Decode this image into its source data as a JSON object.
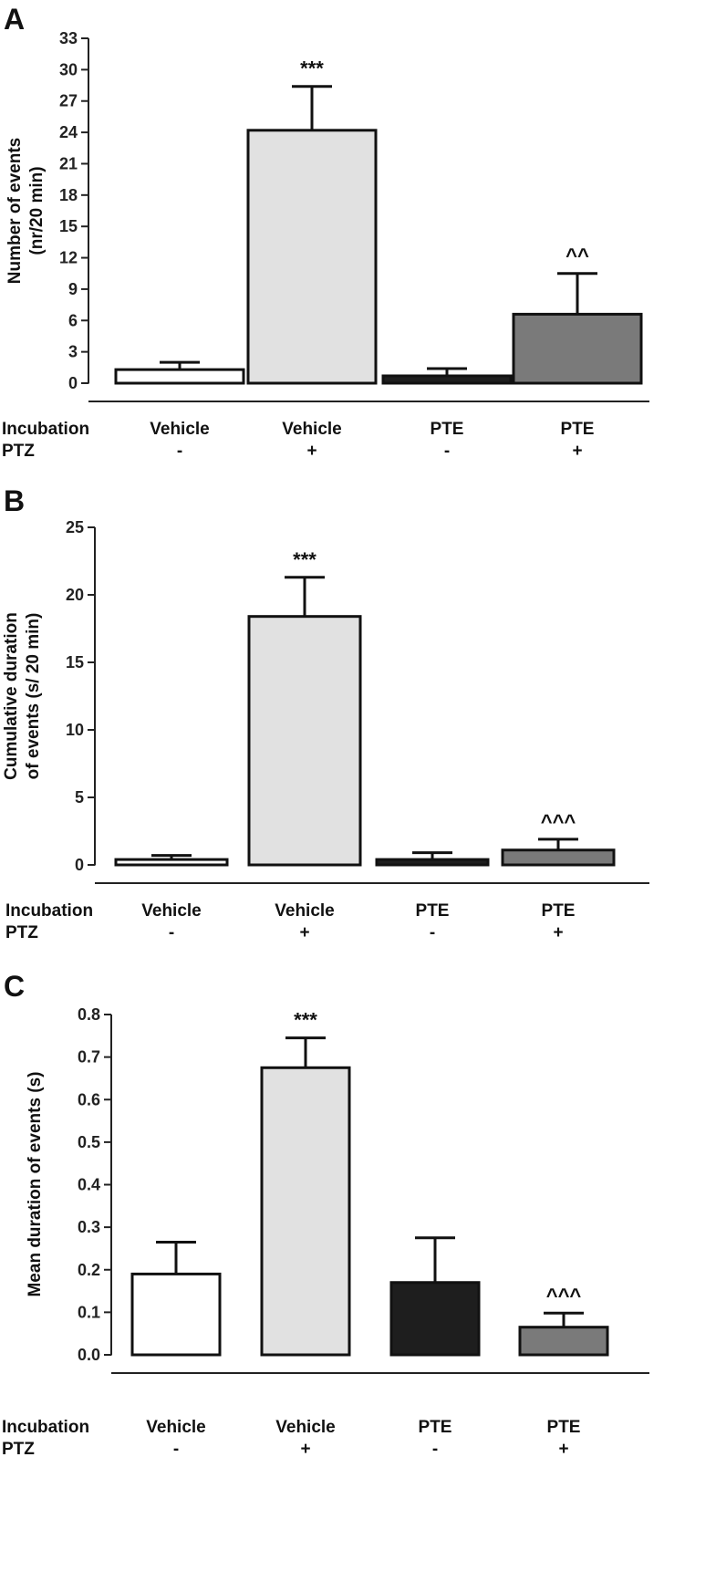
{
  "row_labels": {
    "incubation": "Incubation",
    "ptz": "PTZ"
  },
  "chart_data": [
    {
      "type": "bar",
      "panel": "A",
      "ylabel": [
        "Number of events",
        "(nr/20 min)"
      ],
      "ylim": [
        0,
        33
      ],
      "yticks": [
        0,
        3,
        6,
        9,
        12,
        15,
        18,
        21,
        24,
        27,
        30,
        33
      ],
      "categories": [
        {
          "incubation": "Vehicle",
          "ptz": "-"
        },
        {
          "incubation": "Vehicle",
          "ptz": "+"
        },
        {
          "incubation": "PTE",
          "ptz": "-"
        },
        {
          "incubation": "PTE",
          "ptz": "+"
        }
      ],
      "values": [
        1.3,
        24.2,
        0.7,
        6.6
      ],
      "errors": [
        0.7,
        4.2,
        0.7,
        3.9
      ],
      "annotations": [
        "",
        "***",
        "",
        "^^"
      ],
      "fills": [
        "#ffffff",
        "#e1e1e1",
        "#1e1e1e",
        "#7a7a7a"
      ]
    },
    {
      "type": "bar",
      "panel": "B",
      "ylabel": [
        "Cumulative duration",
        "of events (s/ 20 min)"
      ],
      "ylim": [
        0,
        25
      ],
      "yticks": [
        0,
        5,
        10,
        15,
        20,
        25
      ],
      "categories": [
        {
          "incubation": "Vehicle",
          "ptz": "-"
        },
        {
          "incubation": "Vehicle",
          "ptz": "+"
        },
        {
          "incubation": "PTE",
          "ptz": "-"
        },
        {
          "incubation": "PTE",
          "ptz": "+"
        }
      ],
      "values": [
        0.4,
        18.4,
        0.4,
        1.1
      ],
      "errors": [
        0.3,
        2.9,
        0.5,
        0.8
      ],
      "annotations": [
        "",
        "***",
        "",
        "^^^"
      ],
      "fills": [
        "#ffffff",
        "#e1e1e1",
        "#1e1e1e",
        "#7a7a7a"
      ]
    },
    {
      "type": "bar",
      "panel": "C",
      "ylabel": [
        "Mean duration of events (s)"
      ],
      "ylim": [
        0,
        0.8
      ],
      "yticks": [
        "0.0",
        "0.1",
        "0.2",
        "0.3",
        "0.4",
        "0.5",
        "0.6",
        "0.7",
        "0.8"
      ],
      "categories": [
        {
          "incubation": "Vehicle",
          "ptz": "-"
        },
        {
          "incubation": "Vehicle",
          "ptz": "+"
        },
        {
          "incubation": "PTE",
          "ptz": "-"
        },
        {
          "incubation": "PTE",
          "ptz": "+"
        }
      ],
      "values": [
        0.19,
        0.675,
        0.17,
        0.065
      ],
      "errors": [
        0.075,
        0.07,
        0.105,
        0.033
      ],
      "annotations": [
        "",
        "***",
        "",
        "^^^"
      ],
      "fills": [
        "#ffffff",
        "#e1e1e1",
        "#1e1e1e",
        "#7a7a7a"
      ]
    }
  ]
}
